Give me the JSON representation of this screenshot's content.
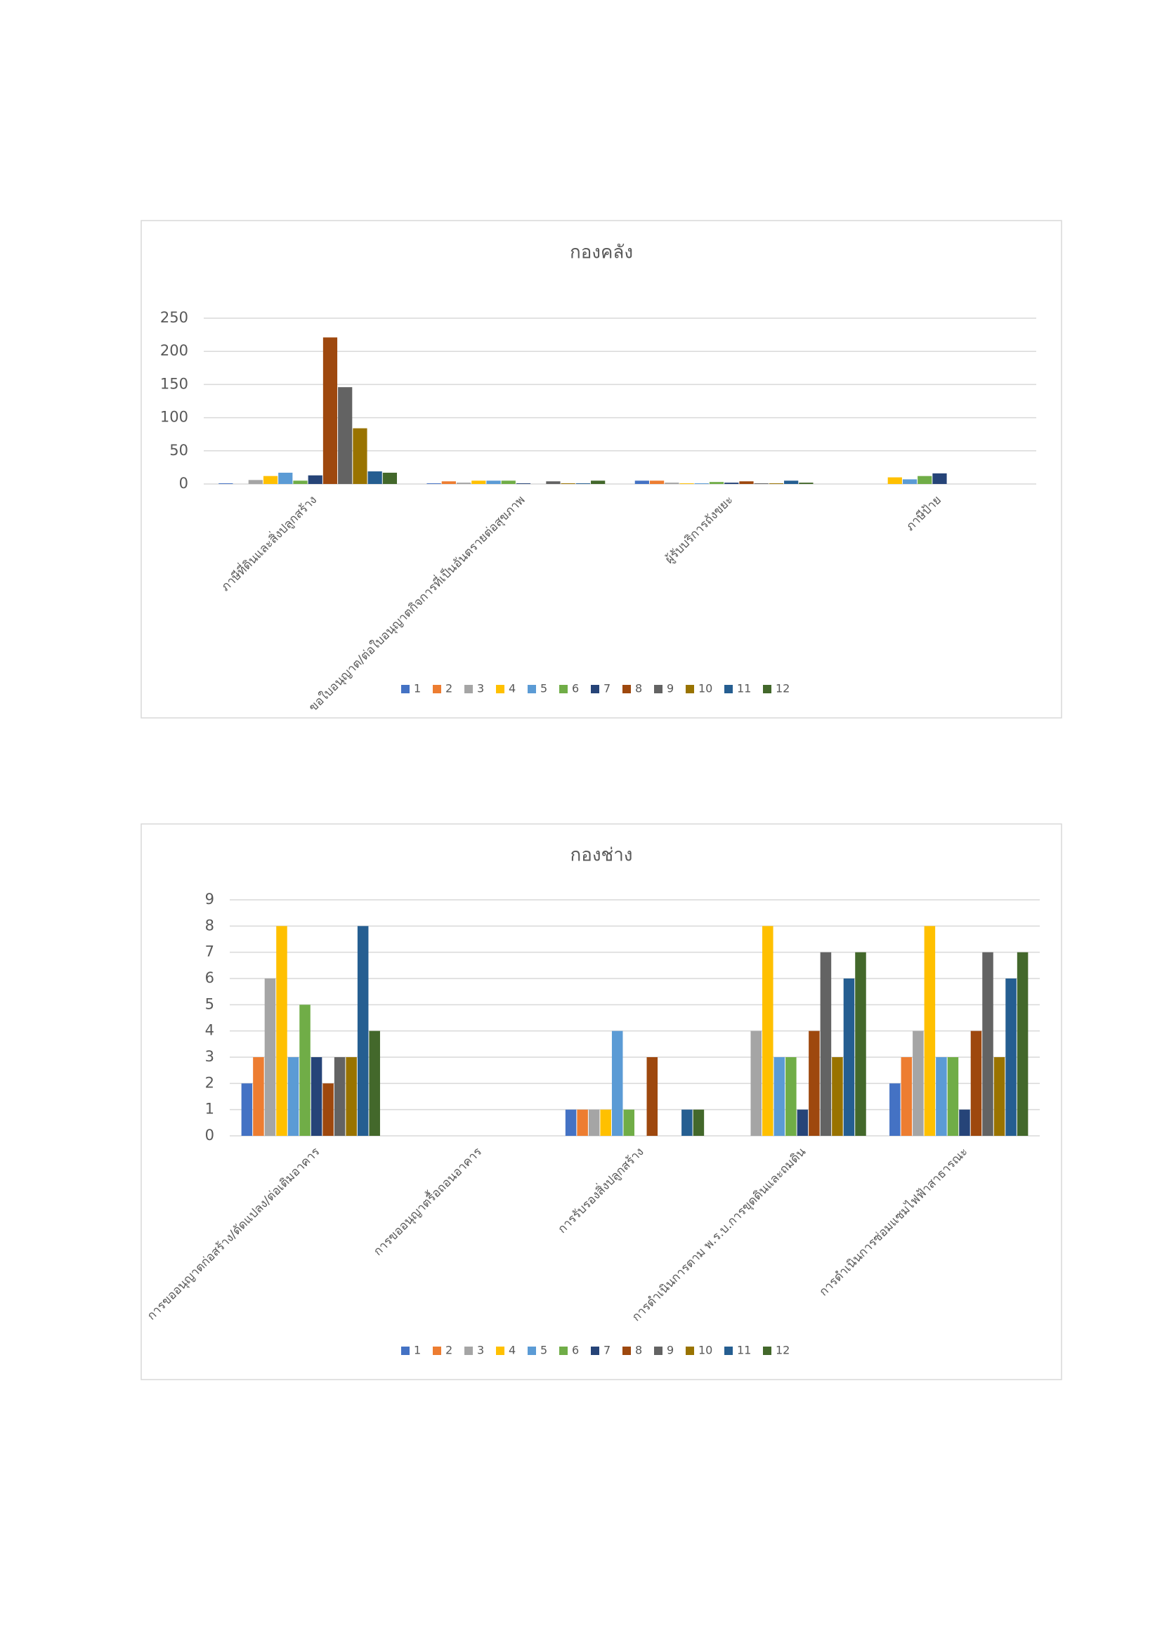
{
  "chart_data": [
    {
      "type": "bar",
      "title": "กองคลัง",
      "categories": [
        "ภาษีที่ดินและสิ่งปลูกสร้าง",
        "ขอใบอนุญาต/ต่อใบอนุญาตกิจการที่เป็นอันตรายต่อสุขภาพ",
        "ผู้รับบริการถังขยะ",
        "ภาษีป้าย"
      ],
      "ylim": [
        0,
        250
      ],
      "yticks": [
        0,
        50,
        100,
        150,
        200,
        250
      ],
      "grid": true,
      "legend": "bottom",
      "series": [
        {
          "name": "1",
          "color": "#4472c4",
          "values": [
            1,
            1,
            5,
            0
          ]
        },
        {
          "name": "2",
          "color": "#ed7d31",
          "values": [
            0,
            4,
            5,
            0
          ]
        },
        {
          "name": "3",
          "color": "#a5a5a5",
          "values": [
            6,
            2,
            2,
            0
          ]
        },
        {
          "name": "4",
          "color": "#ffc000",
          "values": [
            12,
            5,
            1,
            10
          ]
        },
        {
          "name": "5",
          "color": "#5b9bd5",
          "values": [
            17,
            5,
            1,
            7
          ]
        },
        {
          "name": "6",
          "color": "#70ad47",
          "values": [
            5,
            5,
            3,
            12
          ]
        },
        {
          "name": "7",
          "color": "#264478",
          "values": [
            13,
            1,
            2,
            16
          ]
        },
        {
          "name": "8",
          "color": "#9e480e",
          "values": [
            221,
            0,
            4,
            0
          ]
        },
        {
          "name": "9",
          "color": "#636363",
          "values": [
            146,
            4,
            1,
            0
          ]
        },
        {
          "name": "10",
          "color": "#997300",
          "values": [
            84,
            1,
            1,
            0
          ]
        },
        {
          "name": "11",
          "color": "#255e91",
          "values": [
            19,
            1,
            5,
            0
          ]
        },
        {
          "name": "12",
          "color": "#43682b",
          "values": [
            17,
            5,
            2,
            0
          ]
        }
      ]
    },
    {
      "type": "bar",
      "title": "กองช่าง",
      "categories": [
        "การขออนุญาตก่อสร้าง/ดัดแปลง/ต่อเติมอาคาร",
        "การขออนุญาตรื้อถอนอาคาร",
        "การรับรองสิ่งปลูกสร้าง",
        "การดำเนินการตาม พ.ร.บ.การขุดดินและถมดิน",
        "การดำเนินการซ่อมแซมไฟฟ้าสาธารณะ"
      ],
      "ylim": [
        0,
        9
      ],
      "yticks": [
        0,
        1,
        2,
        3,
        4,
        5,
        6,
        7,
        8,
        9
      ],
      "grid": true,
      "legend": "bottom",
      "series": [
        {
          "name": "1",
          "color": "#4472c4",
          "values": [
            2,
            0,
            1,
            0,
            2
          ]
        },
        {
          "name": "2",
          "color": "#ed7d31",
          "values": [
            3,
            0,
            1,
            0,
            3
          ]
        },
        {
          "name": "3",
          "color": "#a5a5a5",
          "values": [
            6,
            0,
            1,
            4,
            4
          ]
        },
        {
          "name": "4",
          "color": "#ffc000",
          "values": [
            8,
            0,
            1,
            8,
            8
          ]
        },
        {
          "name": "5",
          "color": "#5b9bd5",
          "values": [
            3,
            0,
            4,
            3,
            3
          ]
        },
        {
          "name": "6",
          "color": "#70ad47",
          "values": [
            5,
            0,
            1,
            3,
            3
          ]
        },
        {
          "name": "7",
          "color": "#264478",
          "values": [
            3,
            0,
            0,
            1,
            1
          ]
        },
        {
          "name": "8",
          "color": "#9e480e",
          "values": [
            2,
            0,
            3,
            4,
            4
          ]
        },
        {
          "name": "9",
          "color": "#636363",
          "values": [
            3,
            0,
            0,
            7,
            7
          ]
        },
        {
          "name": "10",
          "color": "#997300",
          "values": [
            3,
            0,
            0,
            3,
            3
          ]
        },
        {
          "name": "11",
          "color": "#255e91",
          "values": [
            8,
            0,
            1,
            6,
            6
          ]
        },
        {
          "name": "12",
          "color": "#43682b",
          "values": [
            4,
            0,
            1,
            7,
            7
          ]
        }
      ]
    }
  ]
}
